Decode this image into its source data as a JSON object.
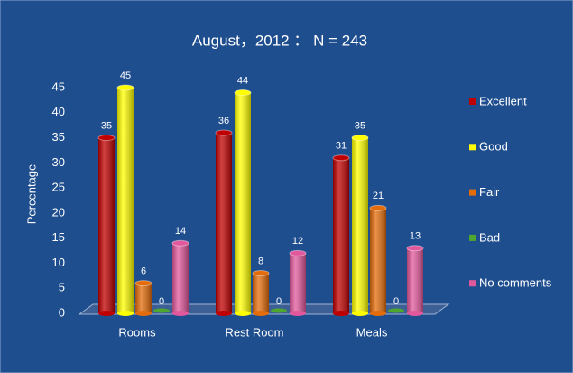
{
  "chart_data": {
    "type": "bar",
    "title": "August，2012 ： N = 243",
    "y_label": "Percentage",
    "categories": [
      "Rooms",
      "Rest Room",
      "Meals"
    ],
    "series": [
      {
        "name": "Excellent",
        "color": "#c00000",
        "values": [
          35,
          36,
          31
        ]
      },
      {
        "name": "Good",
        "color": "#ffff00",
        "values": [
          45,
          44,
          35
        ]
      },
      {
        "name": "Fair",
        "color": "#e46c0a",
        "values": [
          6,
          8,
          21
        ]
      },
      {
        "name": "Bad",
        "color": "#4ea72e",
        "values": [
          0,
          0,
          0
        ]
      },
      {
        "name": "No comments",
        "color": "#e2589c",
        "values": [
          14,
          12,
          13
        ]
      }
    ],
    "ylim": [
      0,
      45
    ],
    "yticks": [
      0,
      5,
      10,
      15,
      20,
      25,
      30,
      35,
      40,
      45
    ],
    "legend": "right",
    "data_labels": true
  }
}
